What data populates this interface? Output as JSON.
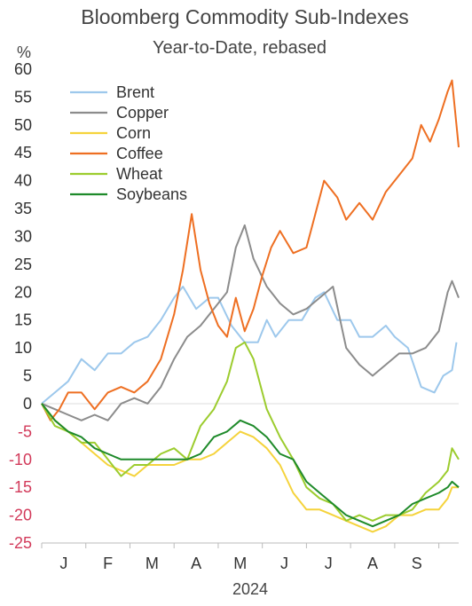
{
  "chart_data": {
    "type": "line",
    "title": "Bloomberg Commodity Sub-Indexes",
    "subtitle": "Year-to-Date, rebased",
    "ylabel": "%",
    "xlabel": "2024",
    "ylim": [
      -25,
      60
    ],
    "y_ticks": [
      60,
      55,
      50,
      45,
      40,
      35,
      30,
      25,
      20,
      15,
      10,
      5,
      0,
      -5,
      -10,
      -15,
      -20,
      -25
    ],
    "x_range": [
      0,
      9.45
    ],
    "months": [
      {
        "label": "J",
        "pos": 0.5
      },
      {
        "label": "F",
        "pos": 1.5
      },
      {
        "label": "M",
        "pos": 2.5
      },
      {
        "label": "A",
        "pos": 3.5
      },
      {
        "label": "M",
        "pos": 4.5
      },
      {
        "label": "J",
        "pos": 5.5
      },
      {
        "label": "J",
        "pos": 6.5
      },
      {
        "label": "A",
        "pos": 7.5
      },
      {
        "label": "S",
        "pos": 8.5
      }
    ],
    "grid": false,
    "legend_position": "top-left",
    "series": [
      {
        "name": "Brent",
        "color": "#9dc8ec",
        "x": [
          0,
          0.3,
          0.6,
          0.9,
          1.2,
          1.5,
          1.8,
          2.1,
          2.4,
          2.7,
          3.0,
          3.2,
          3.5,
          3.8,
          4.0,
          4.3,
          4.6,
          4.9,
          5.1,
          5.3,
          5.6,
          5.9,
          6.2,
          6.4,
          6.7,
          7.0,
          7.2,
          7.5,
          7.8,
          8.0,
          8.3,
          8.6,
          8.9,
          9.1,
          9.3,
          9.4
        ],
        "y": [
          0,
          2,
          4,
          8,
          6,
          9,
          9,
          11,
          12,
          15,
          19,
          21,
          17,
          19,
          19,
          14,
          11,
          11,
          15,
          12,
          15,
          15,
          19,
          20,
          15,
          15,
          12,
          12,
          14,
          12,
          10,
          3,
          2,
          5,
          6,
          11
        ]
      },
      {
        "name": "Copper",
        "color": "#8c8c8c",
        "x": [
          0,
          0.3,
          0.6,
          0.9,
          1.2,
          1.5,
          1.8,
          2.1,
          2.4,
          2.7,
          3.0,
          3.3,
          3.6,
          3.9,
          4.2,
          4.4,
          4.6,
          4.8,
          5.1,
          5.4,
          5.7,
          6.0,
          6.3,
          6.6,
          6.9,
          7.2,
          7.5,
          7.8,
          8.1,
          8.4,
          8.7,
          9.0,
          9.2,
          9.3,
          9.45
        ],
        "y": [
          0,
          -1,
          -2,
          -3,
          -2,
          -3,
          0,
          1,
          0,
          3,
          8,
          12,
          14,
          17,
          20,
          28,
          32,
          26,
          21,
          18,
          16,
          17,
          19,
          21,
          10,
          7,
          5,
          7,
          9,
          9,
          10,
          13,
          20,
          22,
          19
        ]
      },
      {
        "name": "Corn",
        "color": "#f5d33c",
        "x": [
          0,
          0.3,
          0.6,
          0.9,
          1.2,
          1.5,
          1.8,
          2.1,
          2.4,
          2.7,
          3.0,
          3.3,
          3.6,
          3.9,
          4.2,
          4.5,
          4.8,
          5.1,
          5.4,
          5.7,
          6.0,
          6.3,
          6.6,
          6.9,
          7.2,
          7.5,
          7.8,
          8.1,
          8.4,
          8.7,
          9.0,
          9.2,
          9.3,
          9.45
        ],
        "y": [
          0,
          -3,
          -5,
          -7,
          -9,
          -11,
          -12,
          -13,
          -11,
          -11,
          -11,
          -10,
          -10,
          -9,
          -7,
          -5,
          -6,
          -8,
          -11,
          -16,
          -19,
          -19,
          -20,
          -21,
          -22,
          -23,
          -22,
          -20,
          -20,
          -19,
          -19,
          -17,
          -15,
          -15
        ]
      },
      {
        "name": "Coffee",
        "color": "#ee6f22",
        "x": [
          0,
          0.2,
          0.4,
          0.6,
          0.9,
          1.2,
          1.5,
          1.8,
          2.1,
          2.4,
          2.7,
          3.0,
          3.2,
          3.4,
          3.6,
          3.8,
          4.0,
          4.2,
          4.4,
          4.6,
          4.8,
          5.0,
          5.2,
          5.4,
          5.7,
          6.0,
          6.2,
          6.4,
          6.7,
          6.9,
          7.2,
          7.5,
          7.8,
          8.1,
          8.4,
          8.6,
          8.8,
          9.0,
          9.2,
          9.3,
          9.45
        ],
        "y": [
          0,
          -3,
          -1,
          2,
          2,
          -1,
          2,
          3,
          2,
          4,
          8,
          16,
          24,
          34,
          24,
          18,
          14,
          12,
          19,
          13,
          17,
          23,
          28,
          31,
          27,
          28,
          34,
          40,
          37,
          33,
          36,
          33,
          38,
          41,
          44,
          50,
          47,
          51,
          56,
          58,
          46
        ]
      },
      {
        "name": "Wheat",
        "color": "#9ccc2e",
        "x": [
          0,
          0.3,
          0.6,
          0.9,
          1.2,
          1.5,
          1.8,
          2.1,
          2.4,
          2.7,
          3.0,
          3.3,
          3.6,
          3.9,
          4.2,
          4.4,
          4.6,
          4.8,
          5.1,
          5.4,
          5.7,
          6.0,
          6.3,
          6.6,
          6.9,
          7.2,
          7.5,
          7.8,
          8.1,
          8.4,
          8.7,
          9.0,
          9.2,
          9.3,
          9.45
        ],
        "y": [
          0,
          -4,
          -5,
          -7,
          -7,
          -10,
          -13,
          -11,
          -11,
          -9,
          -8,
          -10,
          -4,
          -1,
          4,
          10,
          11,
          8,
          -1,
          -6,
          -10,
          -15,
          -17,
          -18,
          -21,
          -20,
          -21,
          -20,
          -20,
          -19,
          -16,
          -14,
          -12,
          -8,
          -10
        ]
      },
      {
        "name": "Soybeans",
        "color": "#1e8a2a",
        "x": [
          0,
          0.3,
          0.6,
          0.9,
          1.2,
          1.5,
          1.8,
          2.1,
          2.4,
          2.7,
          3.0,
          3.3,
          3.6,
          3.9,
          4.2,
          4.5,
          4.8,
          5.1,
          5.4,
          5.7,
          6.0,
          6.3,
          6.6,
          6.9,
          7.2,
          7.5,
          7.8,
          8.1,
          8.4,
          8.7,
          9.0,
          9.2,
          9.3,
          9.45
        ],
        "y": [
          0,
          -3,
          -5,
          -6,
          -8,
          -9,
          -10,
          -10,
          -10,
          -10,
          -10,
          -10,
          -9,
          -6,
          -5,
          -3,
          -4,
          -6,
          -9,
          -10,
          -14,
          -16,
          -18,
          -20,
          -21,
          -22,
          -21,
          -20,
          -18,
          -17,
          -16,
          -15,
          -14,
          -15
        ]
      }
    ]
  }
}
